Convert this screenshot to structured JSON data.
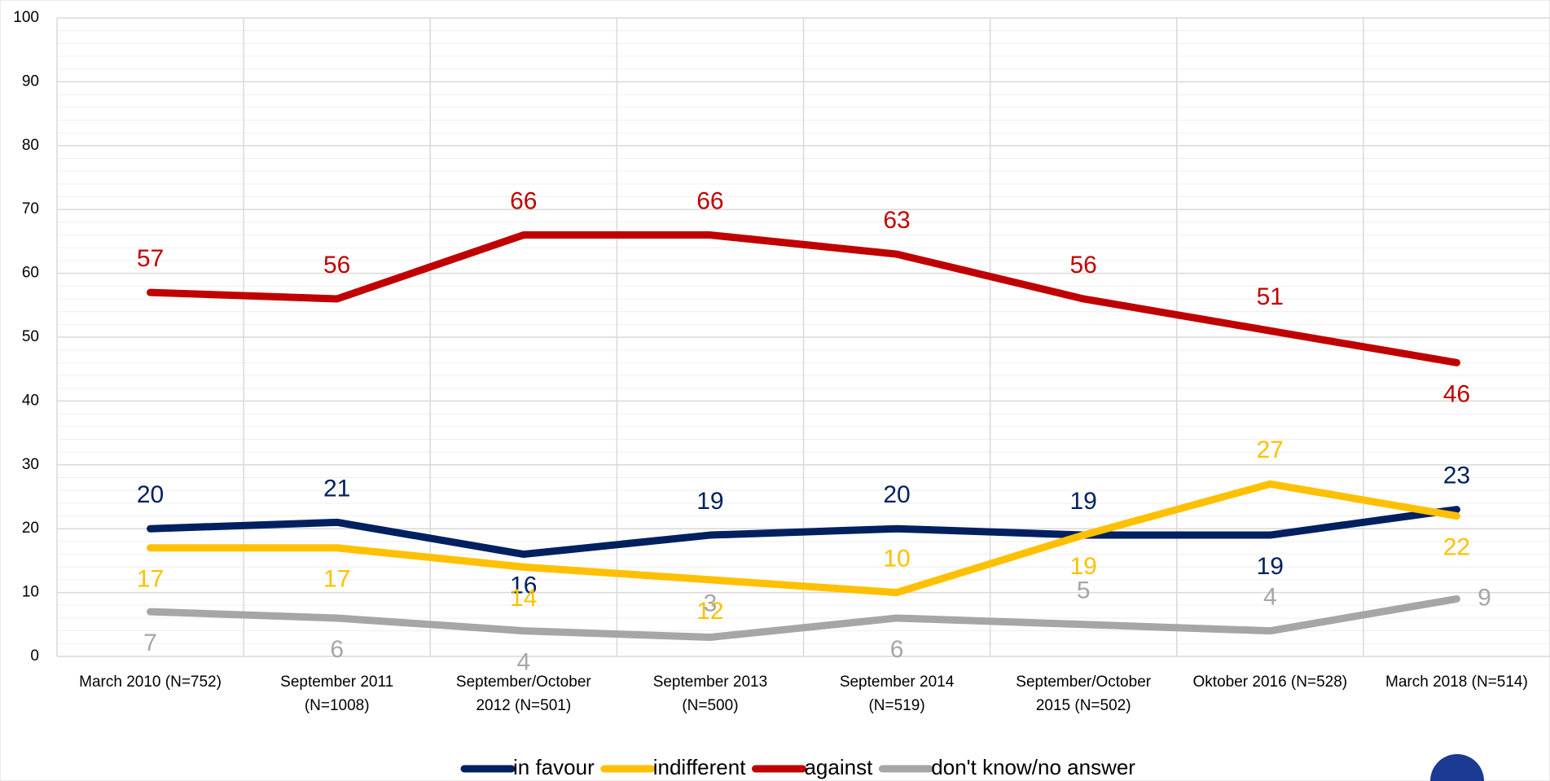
{
  "chart_data": {
    "type": "line",
    "categories": [
      "March 2010 (N=752)",
      "September 2011\n(N=1008)",
      "September/October\n2012 (N=501)",
      "September 2013\n(N=500)",
      "September 2014\n(N=519)",
      "September/October\n2015 (N=502)",
      "Oktober 2016 (N=528)",
      "March 2018 (N=514)"
    ],
    "series": [
      {
        "name": "in favour",
        "color": "#002060",
        "values": [
          20,
          21,
          16,
          19,
          20,
          19,
          19,
          23
        ]
      },
      {
        "name": "indifferent",
        "color": "#ffc000",
        "values": [
          17,
          17,
          14,
          12,
          10,
          19,
          27,
          22
        ]
      },
      {
        "name": "against",
        "color": "#c00000",
        "values": [
          57,
          56,
          66,
          66,
          63,
          56,
          51,
          46
        ]
      },
      {
        "name": "don't know/no answer",
        "color": "#a6a6a6",
        "values": [
          7,
          6,
          4,
          3,
          6,
          5,
          4,
          9
        ]
      }
    ],
    "ylim": [
      0,
      100
    ],
    "yticks": [
      0,
      10,
      20,
      30,
      40,
      50,
      60,
      70,
      80,
      90,
      100
    ],
    "grid": true,
    "legend": "bottom"
  }
}
